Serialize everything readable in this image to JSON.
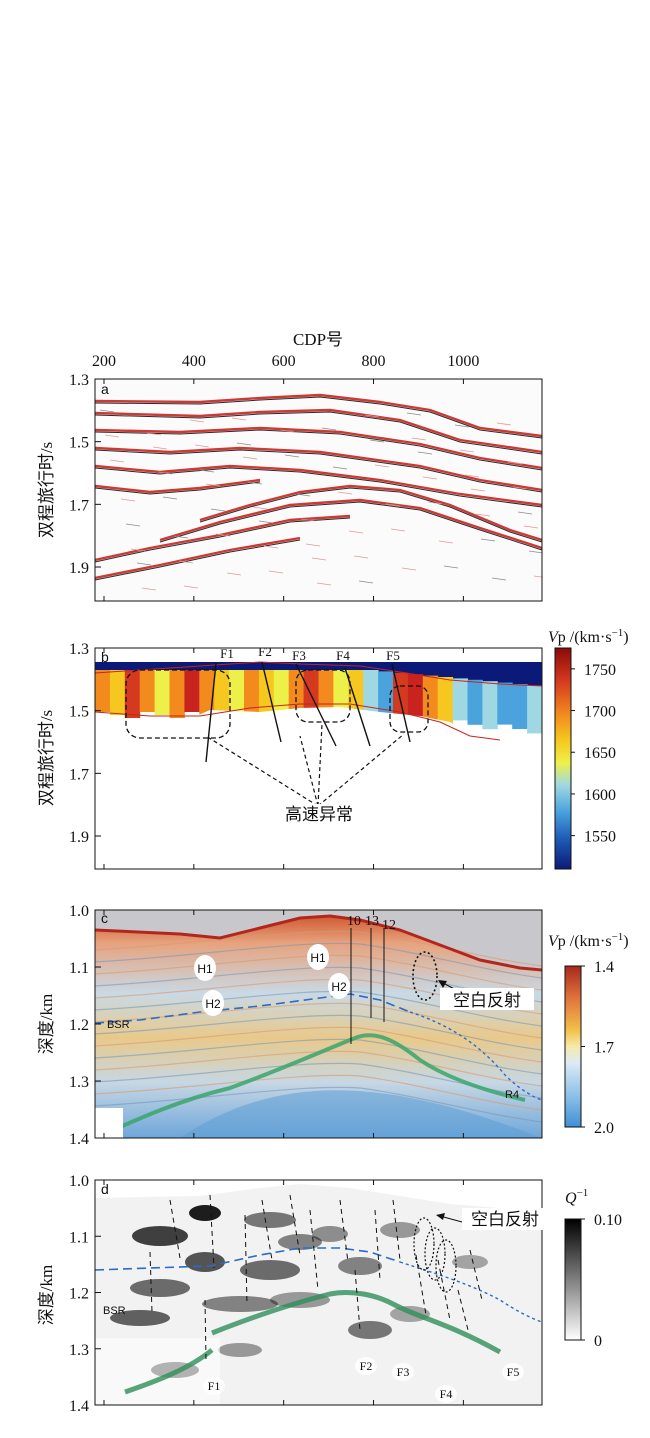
{
  "figure": {
    "top_axis_label": "CDP号",
    "top_axis_ticks": [
      "200",
      "400",
      "600",
      "800",
      "1000"
    ],
    "panels": [
      {
        "id": "a",
        "label": "a",
        "ylabel": "双程旅行时/s",
        "y_ticks": [
          "1.3",
          "1.5",
          "1.7",
          "1.9"
        ]
      },
      {
        "id": "b",
        "label": "b",
        "ylabel": "双程旅行时/s",
        "y_ticks": [
          "1.3",
          "1.5",
          "1.7",
          "1.9"
        ],
        "faults": [
          "F1",
          "F2",
          "F3",
          "F4",
          "F5"
        ],
        "annotation": "高速异常",
        "colorbar": {
          "title_italic": "V",
          "title_rest": "p /(km·s",
          "title_sup": "−1",
          "title_close": ")",
          "ticks": [
            "1750",
            "1700",
            "1650",
            "1600",
            "1550"
          ],
          "colors": [
            "#8b0a0a",
            "#d43a1f",
            "#f28a1e",
            "#f6c81f",
            "#eef04a",
            "#9fd8e2",
            "#4aa3dd",
            "#1f5cb8",
            "#0b1a78"
          ]
        }
      },
      {
        "id": "c",
        "label": "c",
        "ylabel": "深度/km",
        "y_ticks": [
          "1.0",
          "1.1",
          "1.2",
          "1.3",
          "1.4"
        ],
        "labels": [
          "H1",
          "H2",
          "H1",
          "H2"
        ],
        "wells": [
          "10",
          "13",
          "12"
        ],
        "annotation": "空白反射",
        "bsr_label": "BSR",
        "reflector_label": "R4",
        "colorbar": {
          "title_italic": "V",
          "title_rest": "p /(km·s",
          "title_sup": "−1",
          "title_close": ")",
          "ticks": [
            "1.4",
            "1.7",
            "2.0"
          ],
          "colors": [
            "#a8281c",
            "#e0733c",
            "#f2c14a",
            "#f7eaa8",
            "#dceaf5",
            "#8fc2e8",
            "#3f8fd6"
          ]
        }
      },
      {
        "id": "d",
        "label": "d",
        "ylabel": "深度/km",
        "y_ticks": [
          "1.0",
          "1.1",
          "1.2",
          "1.3",
          "1.4"
        ],
        "annotation": "空白反射",
        "bsr_label": "BSR",
        "faults": [
          "F1",
          "F2",
          "F3",
          "F4",
          "F5"
        ],
        "colorbar": {
          "title": "Q",
          "title_sup": "−1",
          "ticks": [
            "0.10",
            "0"
          ],
          "colors": [
            "#000000",
            "#ffffff"
          ]
        }
      }
    ]
  }
}
